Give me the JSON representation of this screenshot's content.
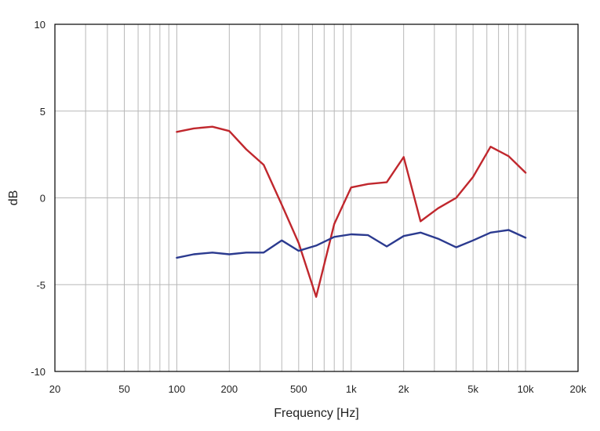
{
  "chart_data": {
    "type": "line",
    "title": "",
    "xlabel": "Frequency [Hz]",
    "ylabel": "dB",
    "x_scale": "log",
    "xlim": [
      20,
      20000
    ],
    "ylim": [
      -10,
      10
    ],
    "grid": true,
    "legend": "none",
    "x_ticks": [
      {
        "value": 20,
        "label": "20"
      },
      {
        "value": 50,
        "label": "50"
      },
      {
        "value": 100,
        "label": "100"
      },
      {
        "value": 200,
        "label": "200"
      },
      {
        "value": 500,
        "label": "500"
      },
      {
        "value": 1000,
        "label": "1k"
      },
      {
        "value": 2000,
        "label": "2k"
      },
      {
        "value": 5000,
        "label": "5k"
      },
      {
        "value": 10000,
        "label": "10k"
      },
      {
        "value": 20000,
        "label": "20k"
      }
    ],
    "y_ticks": [
      {
        "value": 10,
        "label": "10"
      },
      {
        "value": 5,
        "label": "5"
      },
      {
        "value": 0,
        "label": "0"
      },
      {
        "value": -5,
        "label": "-5"
      },
      {
        "value": -10,
        "label": "-10"
      }
    ],
    "x": [
      100,
      125,
      160,
      200,
      250,
      315,
      400,
      500,
      630,
      800,
      1000,
      1250,
      1600,
      2000,
      2500,
      3150,
      4000,
      5000,
      6300,
      8000,
      10000
    ],
    "series": [
      {
        "color": "#c0272d",
        "values": [
          3.8,
          4.0,
          4.1,
          3.85,
          2.8,
          1.9,
          -0.4,
          -2.6,
          -5.7,
          -1.5,
          0.6,
          0.8,
          0.9,
          2.35,
          -1.35,
          -0.6,
          0.0,
          1.2,
          2.95,
          2.4,
          1.45
        ]
      },
      {
        "color": "#2b3a8f",
        "values": [
          -3.45,
          -3.25,
          -3.15,
          -3.25,
          -3.15,
          -3.15,
          -2.45,
          -3.05,
          -2.75,
          -2.25,
          -2.1,
          -2.15,
          -2.8,
          -2.2,
          -2.0,
          -2.35,
          -2.85,
          -2.45,
          -2.0,
          -1.85,
          -2.3
        ]
      }
    ]
  }
}
